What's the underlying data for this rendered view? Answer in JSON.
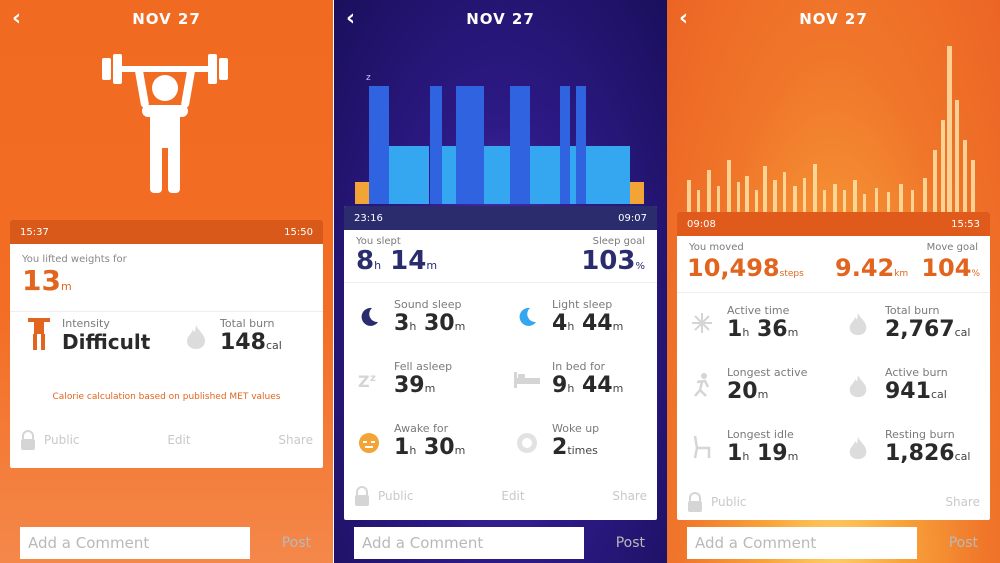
{
  "date": "NOV 27",
  "panel1": {
    "start_time": "15:37",
    "end_time": "15:50",
    "lifted_label": "You lifted weights for",
    "lifted_value": "13",
    "lifted_unit": "m",
    "intensity_label": "Intensity",
    "intensity_value": "Difficult",
    "burn_label": "Total burn",
    "burn_value": "148",
    "burn_unit": "cal",
    "note": "Calorie calculation based on published MET values",
    "public": "Public",
    "edit": "Edit",
    "share": "Share",
    "comment_placeholder": "Add a Comment",
    "post": "Post"
  },
  "panel2": {
    "start_time": "23:16",
    "end_time": "09:07",
    "slept_label": "You slept",
    "slept_h": "8",
    "slept_m": "14",
    "goal_label": "Sleep goal",
    "goal_value": "103",
    "goal_unit": "%",
    "sound_label": "Sound sleep",
    "sound_h": "3",
    "sound_m": "30",
    "light_label": "Light sleep",
    "light_h": "4",
    "light_m": "44",
    "fell_label": "Fell asleep",
    "fell_m": "39",
    "bed_label": "In bed for",
    "bed_h": "9",
    "bed_m": "44",
    "awake_label": "Awake for",
    "awake_h": "1",
    "awake_m": "30",
    "woke_label": "Woke up",
    "woke_value": "2",
    "woke_unit": "times",
    "unit_h": "h",
    "unit_m": "m",
    "public": "Public",
    "edit": "Edit",
    "share": "Share",
    "comment_placeholder": "Add a Comment",
    "post": "Post"
  },
  "panel3": {
    "start_time": "09:08",
    "end_time": "15:53",
    "moved_label": "You moved",
    "steps_value": "10,498",
    "steps_unit": "steps",
    "km_value": "9.42",
    "km_unit": "km",
    "goal_label": "Move goal",
    "goal_value": "104",
    "goal_unit": "%",
    "active_time_label": "Active time",
    "active_time_h": "1",
    "active_time_m": "36",
    "total_burn_label": "Total burn",
    "total_burn_value": "2,767",
    "longest_active_label": "Longest active",
    "longest_active_m": "20",
    "active_burn_label": "Active burn",
    "active_burn_value": "941",
    "longest_idle_label": "Longest idle",
    "longest_idle_h": "1",
    "longest_idle_m": "19",
    "resting_burn_label": "Resting burn",
    "resting_burn_value": "1,826",
    "cal_unit": "cal",
    "unit_h": "h",
    "unit_m": "m",
    "public": "Public",
    "share": "Share",
    "comment_placeholder": "Add a Comment",
    "post": "Post"
  },
  "colors": {
    "orange": "#ee6a22",
    "orange_dark": "#d85a18",
    "navy": "#2a2c6e",
    "purple": "#2d1a86",
    "blue_deep": "#2f63e0",
    "blue_light": "#35a6f0",
    "amber": "#f2a436"
  },
  "icons": [
    "weightlifter-icon",
    "dumbbell-icon",
    "flame-icon",
    "lock-icon",
    "moon-icon",
    "zzz-icon",
    "bed-icon",
    "alarm-icon",
    "sun-icon",
    "footprint-icon",
    "chair-icon",
    "flame-icon"
  ]
}
